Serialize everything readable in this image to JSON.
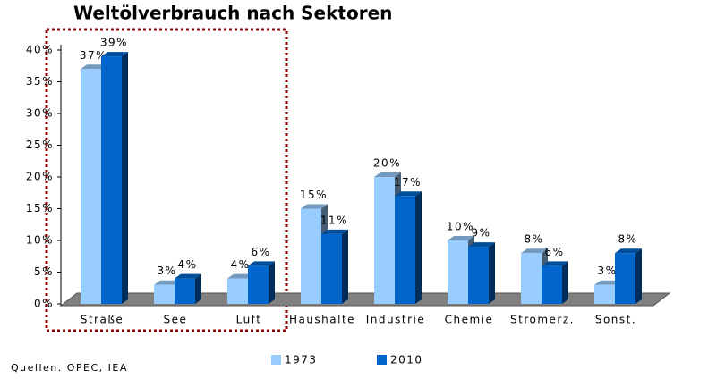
{
  "chart_data": {
    "type": "bar3d",
    "title": "Weltölverbrauch nach Sektoren",
    "categories": [
      "Straße",
      "See",
      "Luft",
      "Haushalte",
      "Industrie",
      "Chemie",
      "Stromerz.",
      "Sonst."
    ],
    "series": [
      {
        "name": "1973",
        "color": "#99ccff",
        "values": [
          37,
          3,
          4,
          15,
          20,
          10,
          8,
          3
        ],
        "value_labels": [
          "37%",
          "3%",
          "4%",
          "15%",
          "20%",
          "10%",
          "8%",
          "3%"
        ]
      },
      {
        "name": "2010",
        "color": "#0066cc",
        "values": [
          39,
          4,
          6,
          11,
          17,
          9,
          6,
          8
        ],
        "value_labels": [
          "39%",
          "4%",
          "6%",
          "11%",
          "17%",
          "9%",
          "6%",
          "8%"
        ]
      }
    ],
    "ylim": [
      0,
      40
    ],
    "yticks": [
      {
        "value": 0,
        "label": "0%"
      },
      {
        "value": 5,
        "label": "5%"
      },
      {
        "value": 10,
        "label": "10%"
      },
      {
        "value": 15,
        "label": "15%"
      },
      {
        "value": 20,
        "label": "20%"
      },
      {
        "value": 25,
        "label": "25%"
      },
      {
        "value": 30,
        "label": "30%"
      },
      {
        "value": 35,
        "label": "35%"
      },
      {
        "value": 40,
        "label": "40%"
      }
    ],
    "legend": "bottom",
    "source": "Quellen. OPEC, IEA"
  }
}
